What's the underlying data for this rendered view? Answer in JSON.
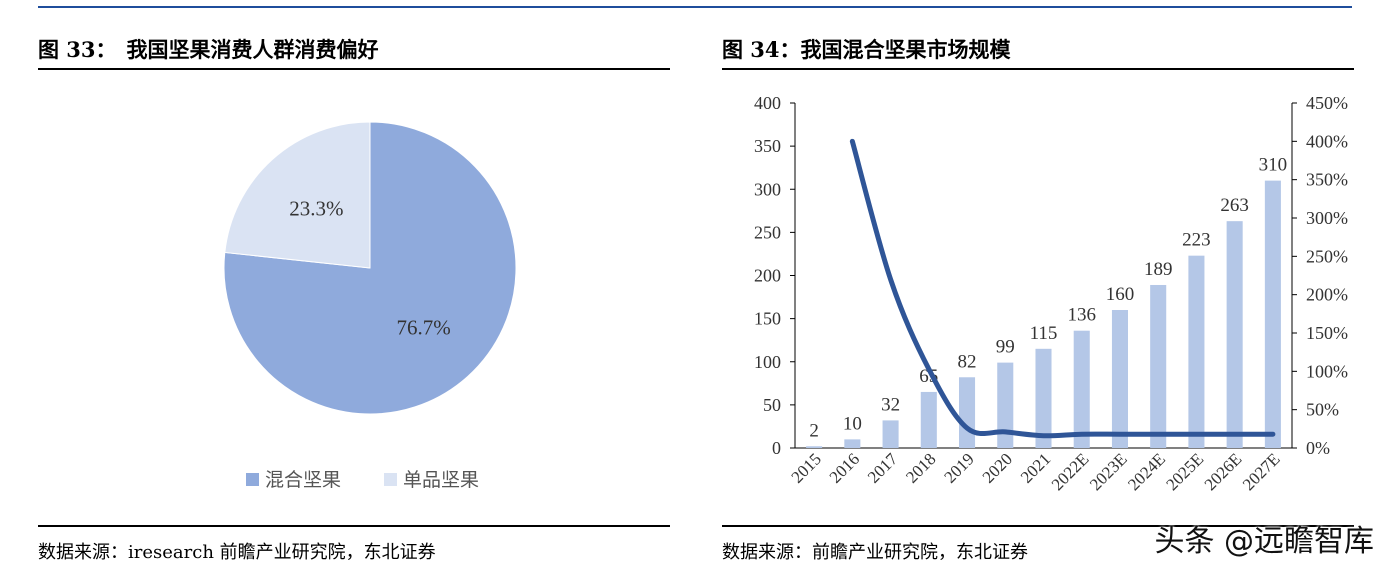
{
  "left": {
    "fig_label": "图 33：",
    "title": "我国坚果消费人群消费偏好",
    "source_label": "数据来源：",
    "source_text": "iresearch 前瞻产业研究院，东北证券"
  },
  "right": {
    "fig_label": "图 34：",
    "title": "我国混合坚果市场规模",
    "source_label": "数据来源：",
    "source_text": "前瞻产业研究院，东北证券"
  },
  "watermark": "头条 @远瞻智库",
  "chart_data": [
    {
      "type": "pie",
      "title": "",
      "slices": [
        {
          "name": "混合坚果",
          "value": 76.7,
          "label": "76.7%",
          "color": "#8faadc"
        },
        {
          "name": "单品坚果",
          "value": 23.3,
          "label": "23.3%",
          "color": "#dae3f3"
        }
      ],
      "legend_position": "bottom"
    },
    {
      "type": "bar",
      "title": "",
      "categories": [
        "2015",
        "2016",
        "2017",
        "2018",
        "2019",
        "2020",
        "2021",
        "2022E",
        "2023E",
        "2024E",
        "2025E",
        "2026E",
        "2027E"
      ],
      "bar_color": "#b4c7e7",
      "line_color": "#2f5597",
      "series": [
        {
          "values": [
            2,
            10,
            32,
            65,
            82,
            99,
            115,
            136,
            160,
            189,
            223,
            263,
            310
          ],
          "axis": "left",
          "kind": "bar"
        },
        {
          "values": [
            null,
            400,
            220,
            103,
            26,
            21,
            16,
            18,
            18,
            18,
            18,
            18,
            18
          ],
          "axis": "right",
          "kind": "line",
          "unit": "%"
        }
      ],
      "ylim_left": [
        0,
        400
      ],
      "yticks_left": [
        "0",
        "50",
        "100",
        "150",
        "200",
        "250",
        "300",
        "350",
        "400"
      ],
      "ylim_right": [
        0,
        450
      ],
      "yticks_right": [
        "0%",
        "50%",
        "100%",
        "150%",
        "200%",
        "250%",
        "300%",
        "350%",
        "400%",
        "450%"
      ],
      "grid": false
    }
  ]
}
